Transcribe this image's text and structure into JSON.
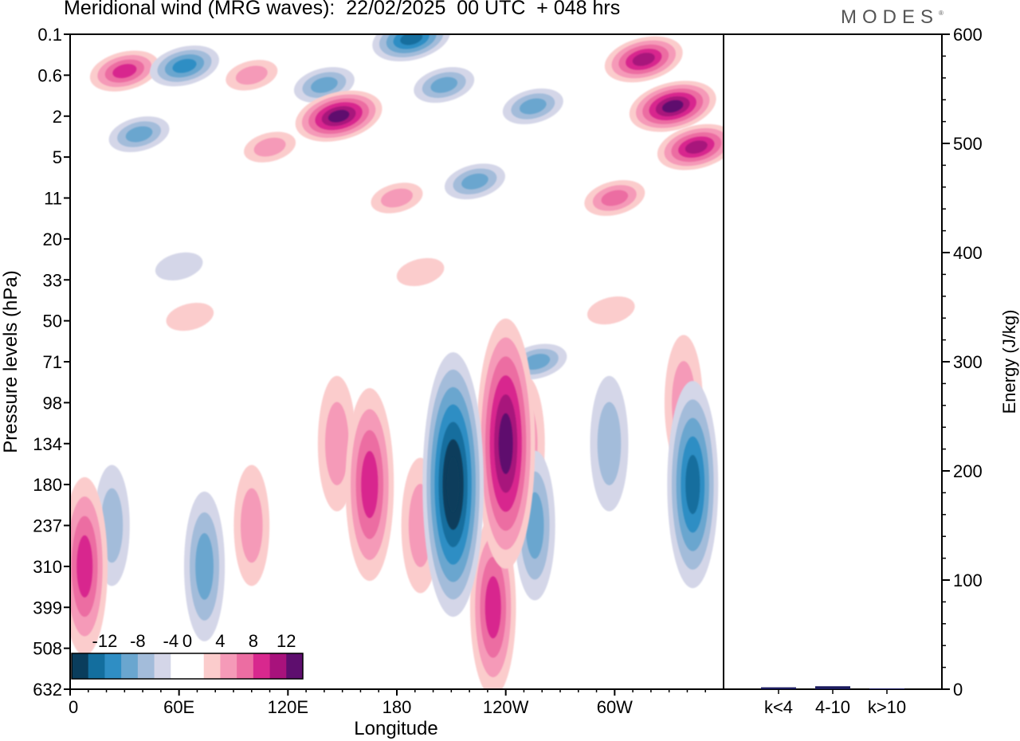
{
  "title": "Meridional wind (MRG waves):  22/02/2025  00 UTC  + 048 hrs",
  "logo": "MODES",
  "colors": {
    "neg": [
      "#0a3d5c",
      "#136e9e",
      "#2f8ec4",
      "#6aa6cf",
      "#a3bcda",
      "#d4d6e8"
    ],
    "pos": [
      "#fbcccc",
      "#f59ab8",
      "#ec6da2",
      "#d8288e",
      "#a8127c",
      "#5e0e6e"
    ],
    "zero": "#ffffff",
    "energy_bar": "#1b1b5e"
  },
  "chart_data": [
    {
      "type": "heatmap",
      "title": "Meridional wind (MRG waves):  22/02/2025  00 UTC  + 048 hrs",
      "xlabel": "Longitude",
      "ylabel": "Pressure levels (hPa)",
      "x_ticks": [
        "0",
        "60E",
        "120E",
        "180",
        "120W",
        "60W"
      ],
      "x_range_deg": [
        0,
        360
      ],
      "y_levels": [
        "0.1",
        "0.6",
        "2",
        "5",
        "11",
        "20",
        "33",
        "50",
        "71",
        "98",
        "134",
        "180",
        "237",
        "310",
        "399",
        "508",
        "632"
      ],
      "colorbar": {
        "tick_labels": [
          "-12",
          "-8",
          "-4",
          "0",
          "4",
          "8",
          "12"
        ],
        "levels": [
          -14,
          -12,
          -10,
          -8,
          -6,
          -4,
          -2,
          2,
          4,
          6,
          8,
          10,
          12,
          14
        ]
      },
      "features": [
        {
          "lon": 211,
          "plev": 180,
          "value": -14
        },
        {
          "lon": 240,
          "plev": 134,
          "value": 13
        },
        {
          "lon": 233,
          "plev": 399,
          "value": 8
        },
        {
          "lon": 165,
          "plev": 180,
          "value": 9
        },
        {
          "lon": 147,
          "plev": 134,
          "value": 5
        },
        {
          "lon": 193,
          "plev": 237,
          "value": 5
        },
        {
          "lon": 343,
          "plev": 180,
          "value": -10
        },
        {
          "lon": 256,
          "plev": 237,
          "value": -6
        },
        {
          "lon": 297,
          "plev": 134,
          "value": -5
        },
        {
          "lon": 74,
          "plev": 310,
          "value": -6
        },
        {
          "lon": 23,
          "plev": 237,
          "value": -4
        },
        {
          "lon": 8,
          "plev": 310,
          "value": 8
        },
        {
          "lon": 100,
          "plev": 237,
          "value": 4
        },
        {
          "lon": 251,
          "plev": 134,
          "value": 5
        },
        {
          "lon": 257,
          "plev": 71,
          "value": -6
        },
        {
          "lon": 338,
          "plev": 98,
          "value": 5
        },
        {
          "lon": 300,
          "plev": 11,
          "value": 6
        },
        {
          "lon": 316,
          "plev": 0.3,
          "value": 10
        },
        {
          "lon": 332,
          "plev": 1.5,
          "value": 12
        },
        {
          "lon": 345,
          "plev": 4,
          "value": 10
        },
        {
          "lon": 148,
          "plev": 2,
          "value": 12
        },
        {
          "lon": 110,
          "plev": 4,
          "value": 4
        },
        {
          "lon": 30,
          "plev": 0.5,
          "value": 8
        },
        {
          "lon": 206,
          "plev": 0.8,
          "value": -6
        },
        {
          "lon": 255,
          "plev": 1.5,
          "value": -6
        },
        {
          "lon": 188,
          "plev": 0.12,
          "value": -10
        },
        {
          "lon": 63,
          "plev": 0.4,
          "value": -8
        },
        {
          "lon": 140,
          "plev": 0.8,
          "value": -6
        },
        {
          "lon": 100,
          "plev": 0.6,
          "value": 4
        },
        {
          "lon": 38,
          "plev": 3,
          "value": -6
        },
        {
          "lon": 223,
          "plev": 8,
          "value": -6
        },
        {
          "lon": 180,
          "plev": 11,
          "value": 4
        },
        {
          "lon": 60,
          "plev": 28,
          "value": -3
        },
        {
          "lon": 193,
          "plev": 30,
          "value": 3
        },
        {
          "lon": 298,
          "plev": 45,
          "value": 3
        },
        {
          "lon": 66,
          "plev": 48,
          "value": 3
        }
      ]
    },
    {
      "type": "bar",
      "categories": [
        "k<4",
        "4-10",
        "k>10"
      ],
      "values": [
        1,
        2,
        0
      ],
      "ylabel": "Energy (J/kg)",
      "ylim": [
        0,
        600
      ],
      "y_ticks": [
        "0",
        "100",
        "200",
        "300",
        "400",
        "500",
        "600"
      ]
    }
  ]
}
